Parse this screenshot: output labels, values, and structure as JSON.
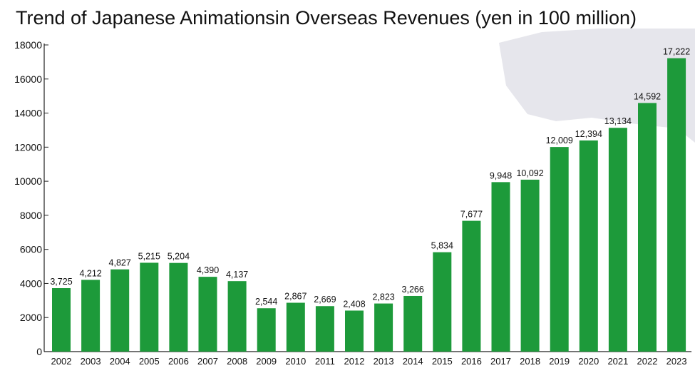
{
  "colors": {
    "bar": "#1d9a3a",
    "axis": "#222222",
    "text": "#111111",
    "background_shape": "#e6e6ec"
  },
  "chart_data": {
    "type": "bar",
    "title": "Trend of Japanese Animationsin Overseas Revenues (yen in 100 million)",
    "xlabel": "",
    "ylabel": "",
    "ylim": [
      0,
      18000
    ],
    "y_ticks": [
      0,
      2000,
      4000,
      6000,
      8000,
      10000,
      12000,
      14000,
      16000,
      18000
    ],
    "grid": false,
    "categories": [
      "2002",
      "2003",
      "2004",
      "2005",
      "2006",
      "2007",
      "2008",
      "2009",
      "2010",
      "2011",
      "2012",
      "2013",
      "2014",
      "2015",
      "2016",
      "2017",
      "2018",
      "2019",
      "2020",
      "2021",
      "2022",
      "2023"
    ],
    "values": [
      3725,
      4212,
      4827,
      5215,
      5204,
      4390,
      4137,
      2544,
      2867,
      2669,
      2408,
      2823,
      3266,
      5834,
      7677,
      9948,
      10092,
      12009,
      12394,
      13134,
      14592,
      17222
    ],
    "value_labels": [
      "3,725",
      "4,212",
      "4,827",
      "5,215",
      "5,204",
      "4,390",
      "4,137",
      "2,544",
      "2,867",
      "2,669",
      "2,408",
      "2,823",
      "3,266",
      "5,834",
      "7,677",
      "9,948",
      "10,092",
      "12,009",
      "12,394",
      "13,134",
      "14,592",
      "17,222"
    ]
  }
}
